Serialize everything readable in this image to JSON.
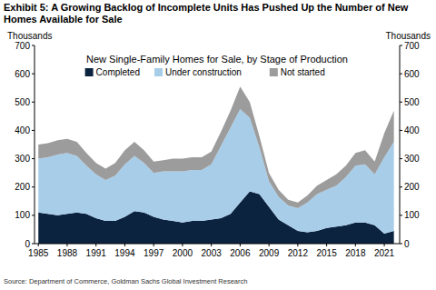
{
  "chart_data": {
    "type": "area",
    "stacked": true,
    "title": "Exhibit 5: A Growing Backlog of Incomplete Units Has Pushed Up the Number of New Homes Available for Sale",
    "subtitle": "New Single-Family Homes for Sale, by Stage of Production",
    "y_label": "Thousands",
    "y2_label": "Thousands",
    "source": "Source: Department of Commerce, Goldman Sachs Global Investment Research",
    "legend": "top",
    "x": [
      1985,
      1986,
      1987,
      1988,
      1989,
      1990,
      1991,
      1992,
      1993,
      1994,
      1995,
      1996,
      1997,
      1998,
      1999,
      2000,
      2001,
      2002,
      2003,
      2004,
      2005,
      2006,
      2007,
      2008,
      2009,
      2010,
      2011,
      2012,
      2013,
      2014,
      2015,
      2016,
      2017,
      2018,
      2019,
      2020,
      2021,
      2022
    ],
    "series": [
      {
        "name": "Completed",
        "color": "#0c2340",
        "values": [
          110,
          105,
          100,
          105,
          110,
          105,
          90,
          80,
          80,
          95,
          115,
          110,
          95,
          85,
          80,
          75,
          80,
          80,
          85,
          90,
          105,
          145,
          185,
          175,
          130,
          85,
          65,
          45,
          40,
          45,
          55,
          60,
          65,
          75,
          75,
          65,
          35,
          45
        ]
      },
      {
        "name": "Under construction",
        "color": "#a8cde9",
        "values": [
          190,
          200,
          215,
          215,
          200,
          170,
          155,
          145,
          160,
          185,
          195,
          175,
          155,
          170,
          175,
          180,
          180,
          180,
          195,
          255,
          305,
          330,
          260,
          165,
          90,
          80,
          70,
          80,
          105,
          130,
          135,
          145,
          170,
          200,
          205,
          180,
          270,
          315
        ]
      },
      {
        "name": "Not started",
        "color": "#9c9c9c",
        "values": [
          50,
          50,
          50,
          50,
          50,
          45,
          40,
          40,
          45,
          50,
          50,
          45,
          40,
          40,
          45,
          45,
          45,
          45,
          45,
          50,
          60,
          80,
          55,
          40,
          30,
          25,
          20,
          20,
          25,
          30,
          35,
          40,
          40,
          45,
          50,
          45,
          85,
          110
        ]
      }
    ],
    "xlim": [
      1984.6,
      2022.6
    ],
    "xticks": [
      1985,
      1988,
      1991,
      1994,
      1997,
      2000,
      2003,
      2006,
      2009,
      2012,
      2015,
      2018,
      2021
    ],
    "ylim": [
      0,
      700
    ],
    "yticks": [
      0,
      100,
      200,
      300,
      400,
      500,
      600,
      700
    ],
    "y2lim": [
      0,
      700
    ],
    "y2ticks": [
      0,
      100,
      200,
      300,
      400,
      500,
      600,
      700
    ],
    "grid": false
  }
}
